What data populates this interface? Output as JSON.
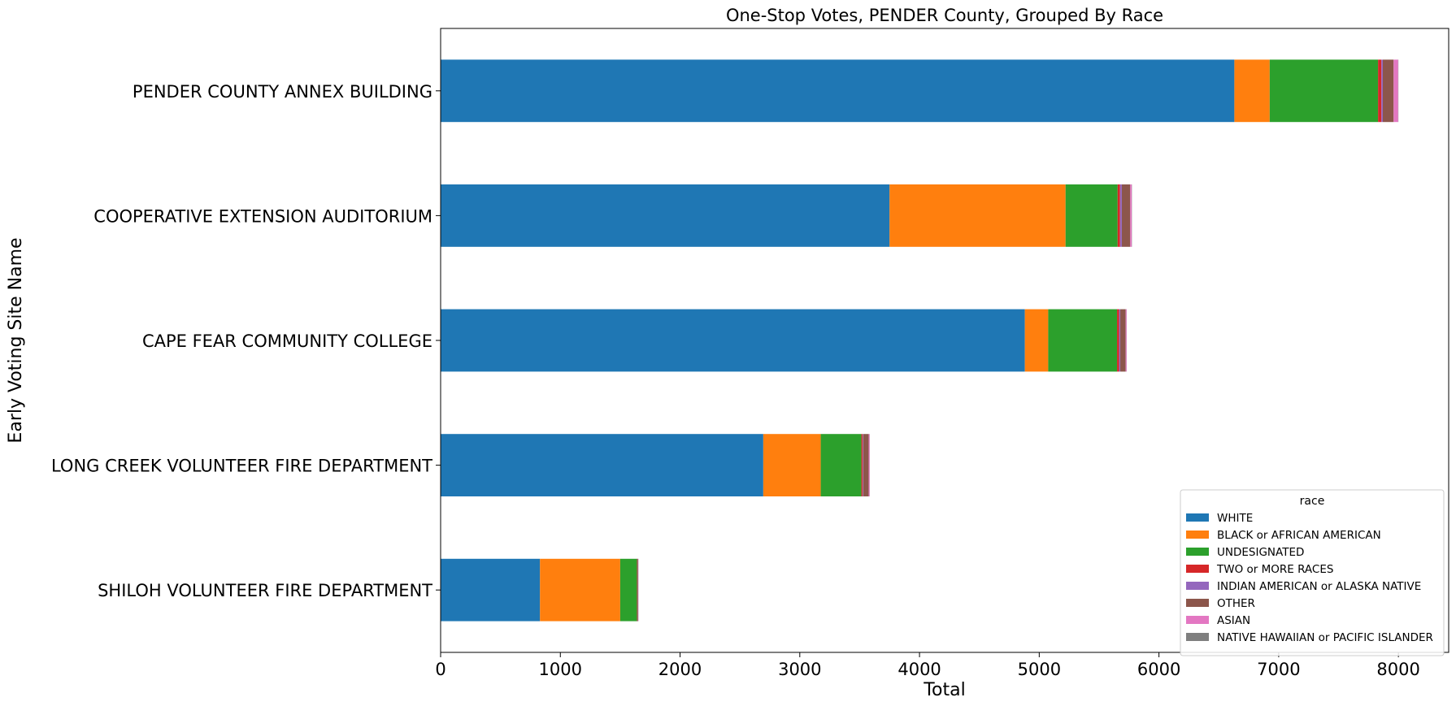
{
  "chart_data": {
    "type": "bar",
    "orientation": "horizontal",
    "stacked": true,
    "title": "One-Stop Votes, PENDER County, Grouped By Race",
    "xlabel": "Total",
    "ylabel": "Early Voting Site Name",
    "xlim": [
      0,
      8420
    ],
    "xticks": [
      0,
      1000,
      2000,
      3000,
      4000,
      5000,
      6000,
      7000,
      8000
    ],
    "grid": false,
    "categories": [
      "PENDER COUNTY ANNEX BUILDING",
      "COOPERATIVE EXTENSION AUDITORIUM",
      "CAPE FEAR COMMUNITY COLLEGE",
      "LONG CREEK VOLUNTEER FIRE DEPARTMENT",
      "SHILOH VOLUNTEER FIRE DEPARTMENT"
    ],
    "legend": {
      "title": "race",
      "placement": "lower-right"
    },
    "series": [
      {
        "name": "WHITE",
        "color": "#1f77b4",
        "values": [
          6630,
          3750,
          4880,
          2695,
          830
        ]
      },
      {
        "name": "BLACK or AFRICAN AMERICAN",
        "color": "#ff7f0e",
        "values": [
          295,
          1470,
          195,
          480,
          670
        ]
      },
      {
        "name": "UNDESIGNATED",
        "color": "#2ca02c",
        "values": [
          905,
          435,
          575,
          340,
          140
        ]
      },
      {
        "name": "TWO or MORE RACES",
        "color": "#d62728",
        "values": [
          28,
          20,
          17,
          10,
          3
        ]
      },
      {
        "name": "INDIAN AMERICAN or ALASKA NATIVE",
        "color": "#9467bd",
        "values": [
          12,
          15,
          10,
          5,
          2
        ]
      },
      {
        "name": "OTHER",
        "color": "#8c564b",
        "values": [
          90,
          70,
          45,
          45,
          5
        ]
      },
      {
        "name": "ASIAN",
        "color": "#e377c2",
        "values": [
          38,
          12,
          8,
          8,
          2
        ]
      },
      {
        "name": "NATIVE HAWAIIAN or PACIFIC ISLANDER",
        "color": "#7f7f7f",
        "values": [
          2,
          2,
          1,
          1,
          1
        ]
      }
    ]
  }
}
